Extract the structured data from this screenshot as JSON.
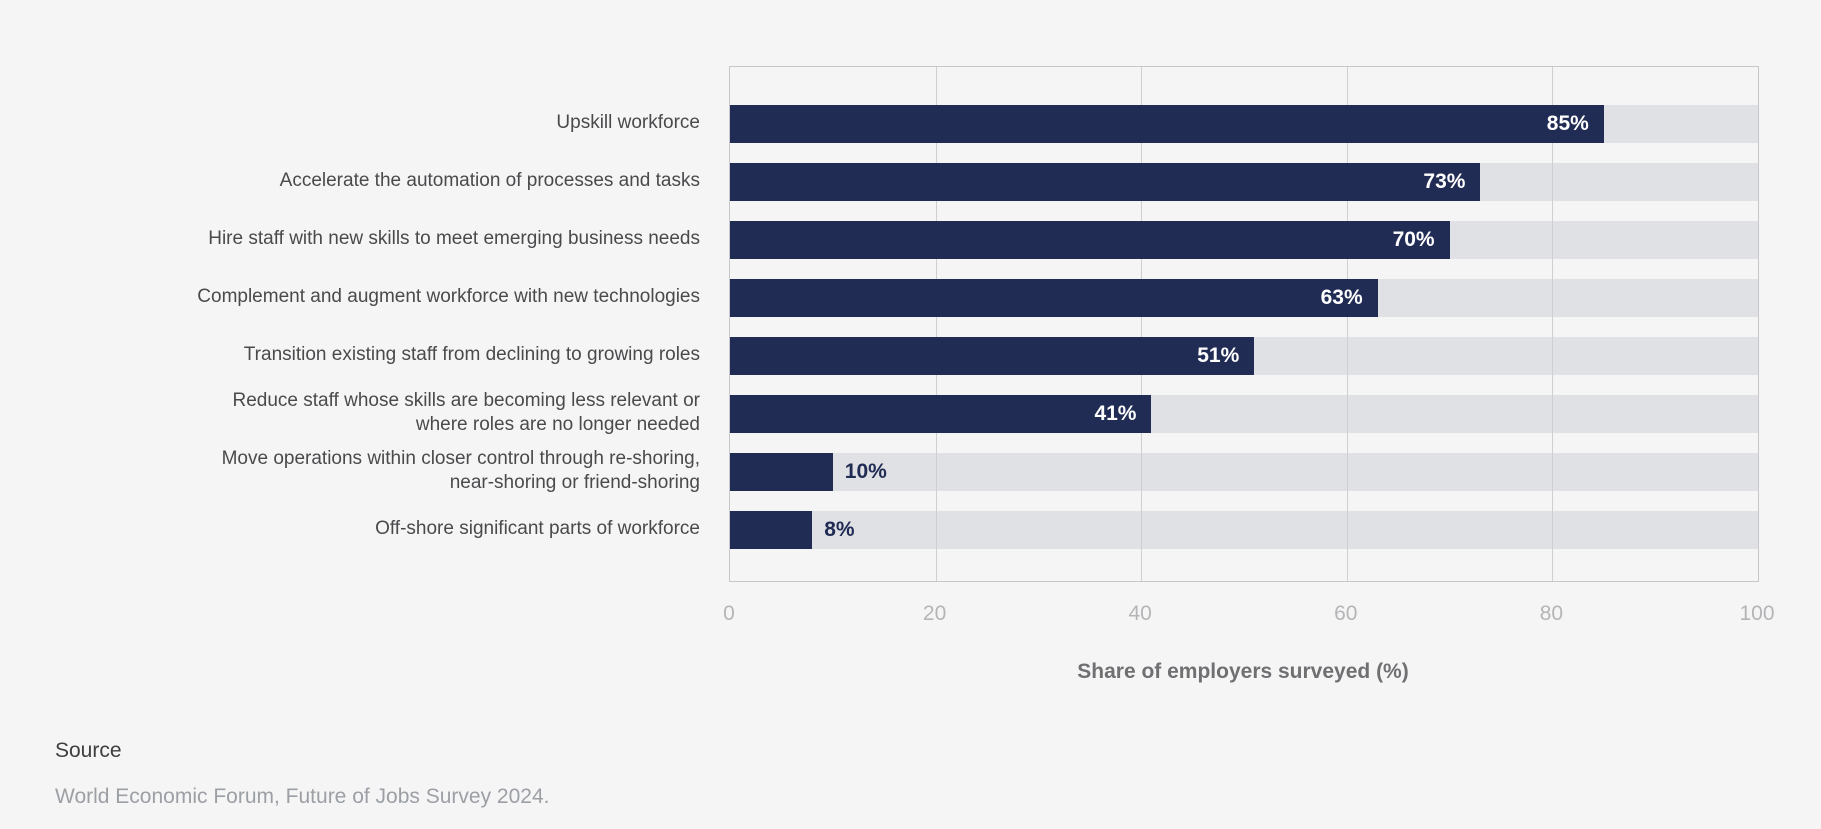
{
  "chart_data": {
    "type": "bar",
    "orientation": "horizontal",
    "categories": [
      "Upskill workforce",
      "Accelerate the automation of processes and tasks",
      "Hire staff with new skills to meet emerging business needs",
      "Complement and augment workforce with new technologies",
      "Transition existing staff from declining to growing roles",
      "Reduce staff whose skills are becoming less relevant or\nwhere roles are no longer needed",
      "Move operations within closer control through re-shoring,\nnear-shoring or friend-shoring",
      "Off-shore significant parts of workforce"
    ],
    "values": [
      85,
      73,
      70,
      63,
      51,
      41,
      10,
      8
    ],
    "value_labels": [
      "85%",
      "73%",
      "70%",
      "63%",
      "51%",
      "41%",
      "10%",
      "8%"
    ],
    "title": "",
    "xlabel": "Share of employers surveyed (%)",
    "ylabel": "",
    "x_ticks": [
      0,
      20,
      40,
      60,
      80,
      100
    ],
    "xlim": [
      0,
      100
    ],
    "grid": "vertical",
    "legend": "none",
    "colors": {
      "bar": "#212c55",
      "track": "#e0e1e5",
      "background": "#f5f5f6",
      "gridline": "#cfcfd3",
      "tick_label": "#b5b5b8",
      "axis_title": "#707073",
      "category_label": "#4a4a4c",
      "value_label_inside": "#ffffff",
      "value_label_outside": "#212c55"
    }
  },
  "source": {
    "label": "Source",
    "text": "World Economic Forum, Future of Jobs Survey 2024."
  }
}
